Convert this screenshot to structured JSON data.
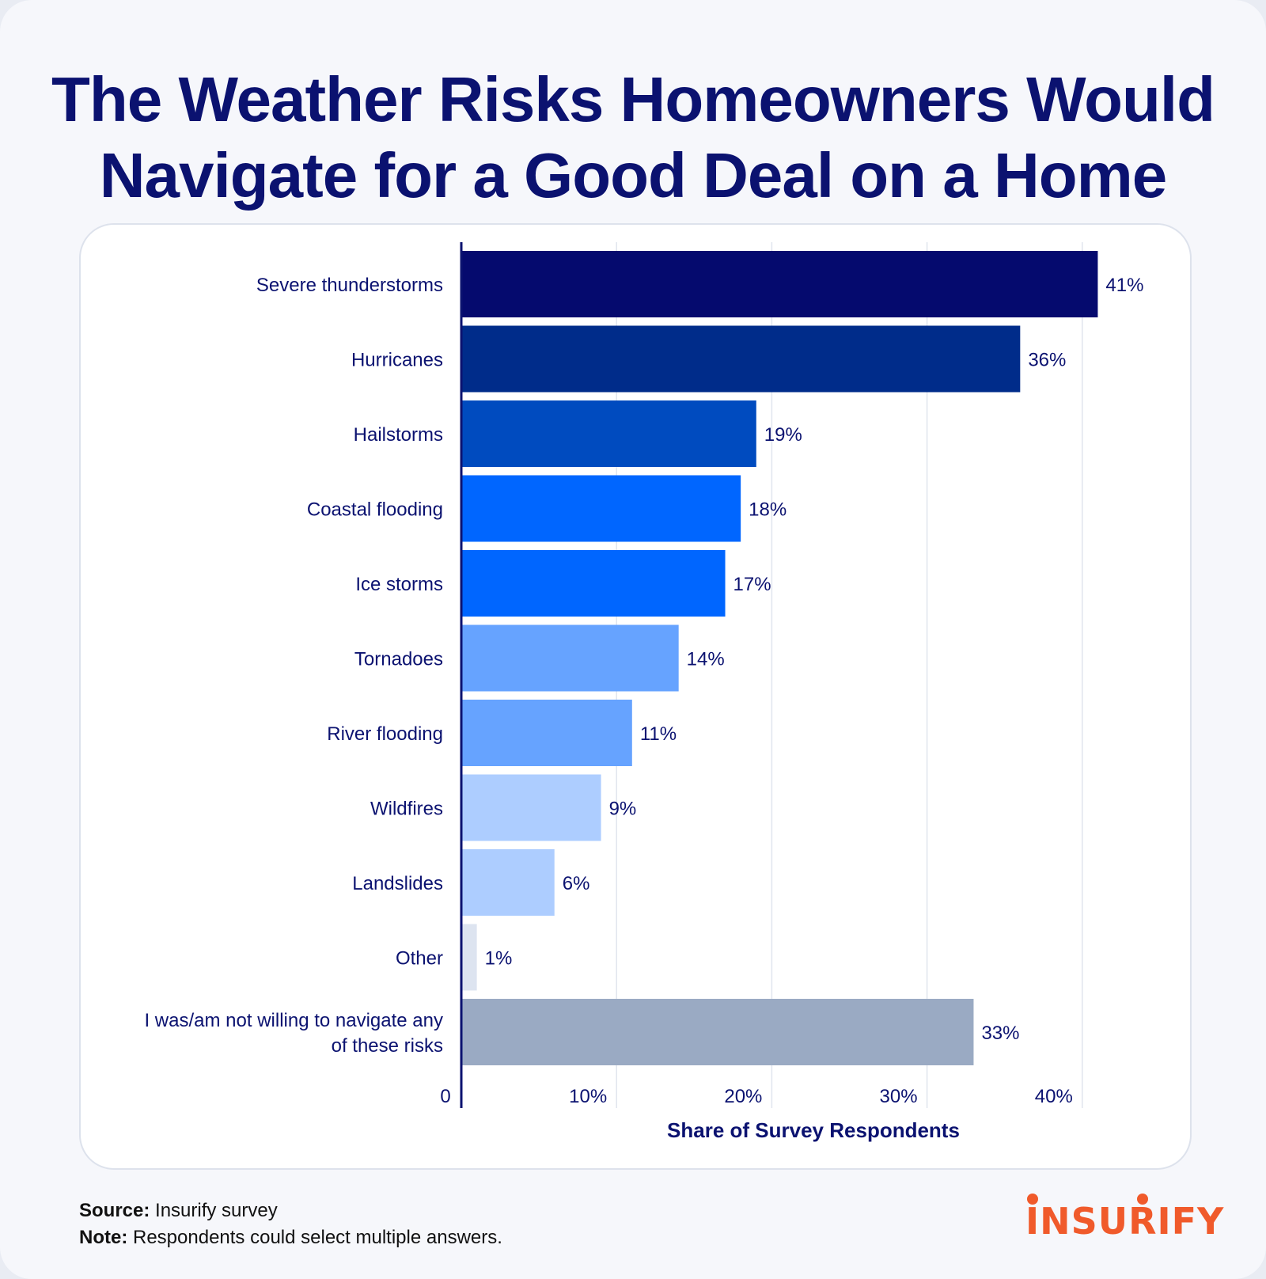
{
  "title_lines": [
    "The Weather Risks Homeowners Would",
    "Navigate for a Good Deal on a Home"
  ],
  "chart_data": {
    "type": "bar",
    "orientation": "horizontal",
    "title": "The Weather Risks Homeowners Would Navigate for a Good Deal on a Home",
    "xlabel": "Share of Survey Respondents",
    "ylabel": "",
    "xlim": [
      0,
      41
    ],
    "x_ticks": [
      {
        "value": 0,
        "label": "0"
      },
      {
        "value": 10,
        "label": "10%"
      },
      {
        "value": 20,
        "label": "20%"
      },
      {
        "value": 30,
        "label": "30%"
      },
      {
        "value": 40,
        "label": "40%"
      }
    ],
    "grid": true,
    "categories": [
      {
        "label": [
          "Severe thunderstorms"
        ],
        "value": 41,
        "value_label": "41%",
        "color": "#050a6e"
      },
      {
        "label": [
          "Hurricanes"
        ],
        "value": 36,
        "value_label": "36%",
        "color": "#002c8a"
      },
      {
        "label": [
          "Hailstorms"
        ],
        "value": 19,
        "value_label": "19%",
        "color": "#004bbf"
      },
      {
        "label": [
          "Coastal flooding"
        ],
        "value": 18,
        "value_label": "18%",
        "color": "#0066ff"
      },
      {
        "label": [
          "Ice storms"
        ],
        "value": 17,
        "value_label": "17%",
        "color": "#0066ff"
      },
      {
        "label": [
          "Tornadoes"
        ],
        "value": 14,
        "value_label": "14%",
        "color": "#66a3ff"
      },
      {
        "label": [
          "River flooding"
        ],
        "value": 11,
        "value_label": "11%",
        "color": "#66a3ff"
      },
      {
        "label": [
          "Wildfires"
        ],
        "value": 9,
        "value_label": "9%",
        "color": "#adcdff"
      },
      {
        "label": [
          "Landslides"
        ],
        "value": 6,
        "value_label": "6%",
        "color": "#adcdff"
      },
      {
        "label": [
          "Other"
        ],
        "value": 1,
        "value_label": "1%",
        "color": "#dde4f0"
      },
      {
        "label": [
          "I was/am not willing to navigate any",
          "of these risks"
        ],
        "value": 33,
        "value_label": "33%",
        "color": "#9aaac3"
      }
    ]
  },
  "footer": {
    "source_label": "Source:",
    "source_text": "Insurify survey",
    "note_label": "Note:",
    "note_text": "Respondents could select multiple answers."
  },
  "brand": {
    "name": "INSURIFY",
    "color": "#f05a2b"
  }
}
